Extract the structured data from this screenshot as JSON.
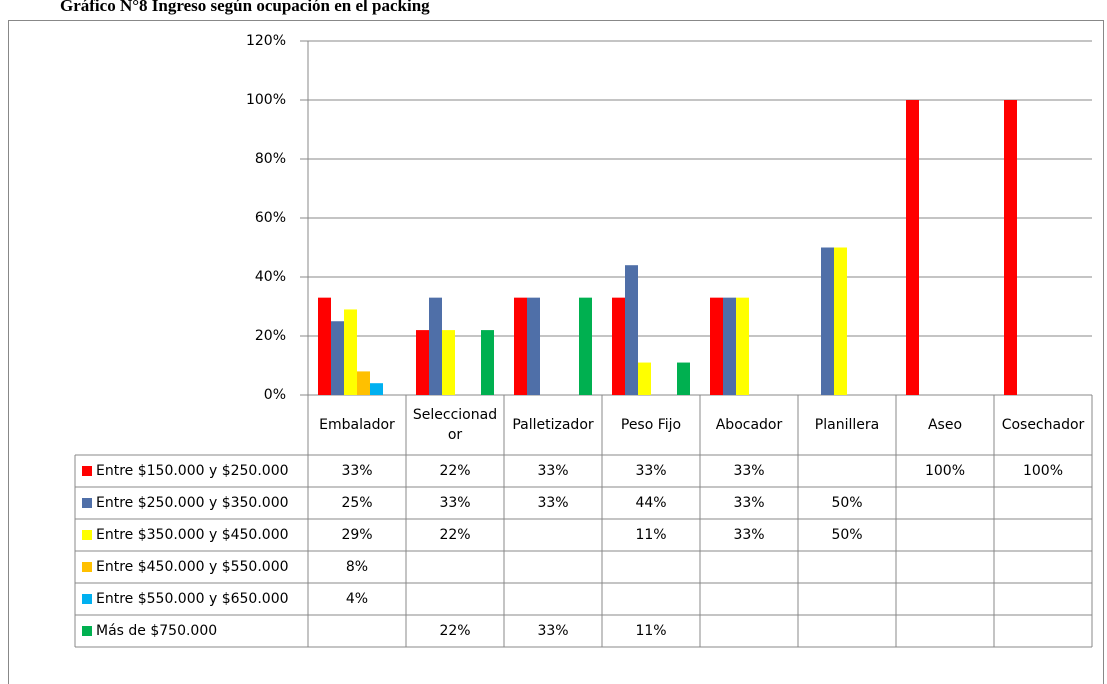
{
  "chart_data": {
    "type": "bar",
    "title": "Gráfico N°8 Ingreso según ocupación en el packing",
    "categories": [
      "Embalador",
      "Seleccionador",
      "Palletizador",
      "Peso Fijo",
      "Abocador",
      "Planillera",
      "Aseo",
      "Cosechador"
    ],
    "series": [
      {
        "name": "Entre $150.000 y $250.000",
        "color": "#ff0000",
        "values": [
          33,
          22,
          33,
          33,
          33,
          null,
          100,
          100
        ],
        "value_labels": [
          "33%",
          "22%",
          "33%",
          "33%",
          "33%",
          null,
          "100%",
          "100%"
        ]
      },
      {
        "name": "Entre $250.000 y $350.000",
        "color": "#4f6fa8",
        "values": [
          25,
          33,
          33,
          44,
          33,
          50,
          null,
          null
        ],
        "value_labels": [
          "25%",
          "33%",
          "33%",
          "44%",
          "33%",
          "50%",
          null,
          null
        ]
      },
      {
        "name": "Entre $350.000 y $450.000",
        "color": "#ffff00",
        "values": [
          29,
          22,
          null,
          11,
          33,
          50,
          null,
          null
        ],
        "value_labels": [
          "29%",
          "22%",
          null,
          "11%",
          "33%",
          "50%",
          null,
          null
        ]
      },
      {
        "name": "Entre $450.000 y $550.000",
        "color": "#ffc000",
        "values": [
          8,
          null,
          null,
          null,
          null,
          null,
          null,
          null
        ],
        "value_labels": [
          "8%",
          null,
          null,
          null,
          null,
          null,
          null,
          null
        ]
      },
      {
        "name": "Entre $550.000 y $650.000",
        "color": "#00b0f0",
        "values": [
          4,
          null,
          null,
          null,
          null,
          null,
          null,
          null
        ],
        "value_labels": [
          "4%",
          null,
          null,
          null,
          null,
          null,
          null,
          null
        ]
      },
      {
        "name": "Más de $750.000",
        "color": "#00b050",
        "values": [
          null,
          22,
          33,
          11,
          null,
          null,
          null,
          null
        ],
        "value_labels": [
          null,
          "22%",
          "33%",
          "11%",
          null,
          null,
          null,
          null
        ]
      }
    ],
    "ylim": [
      0,
      120
    ],
    "yticks": [
      {
        "value": 0,
        "label": "0%"
      },
      {
        "value": 20,
        "label": "20%"
      },
      {
        "value": 40,
        "label": "40%"
      },
      {
        "value": 60,
        "label": "60%"
      },
      {
        "value": 80,
        "label": "80%"
      },
      {
        "value": 100,
        "label": "100%"
      },
      {
        "value": 120,
        "label": "120%"
      }
    ],
    "grid": true
  }
}
